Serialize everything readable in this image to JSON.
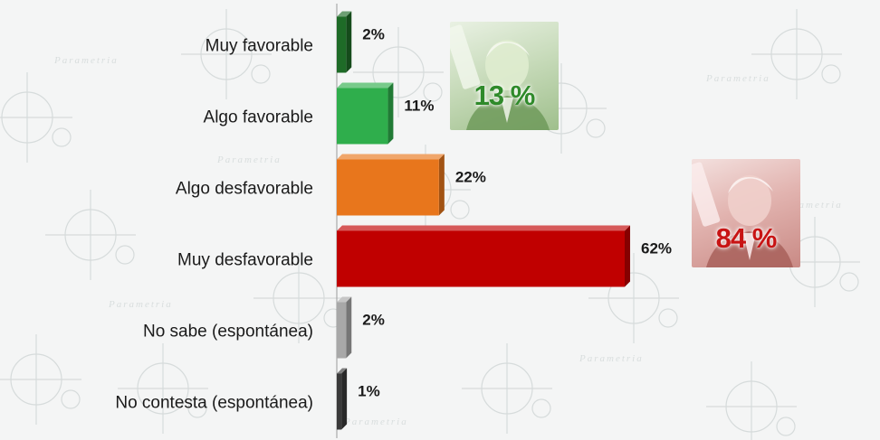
{
  "watermark_text": "Parametria",
  "chart_data": {
    "type": "bar",
    "orientation": "horizontal",
    "categories": [
      "Muy favorable",
      "Algo favorable",
      "Algo desfavorable",
      "Muy desfavorable",
      "No sabe (espontánea)",
      "No contesta (espontánea)"
    ],
    "values": [
      2,
      11,
      22,
      62,
      2,
      1
    ],
    "value_labels": [
      "2%",
      "11%",
      "22%",
      "62%",
      "2%",
      "1%"
    ],
    "colors": [
      "#1e6b27",
      "#2fae4c",
      "#e8761c",
      "#c00000",
      "#a8a8a8",
      "#3a3a3a"
    ],
    "xlim": [
      0,
      62
    ],
    "title": "",
    "xlabel": "",
    "ylabel": "",
    "grid": false,
    "legend": "none"
  },
  "callouts": {
    "favorable": {
      "value": "13 %",
      "color": "#2f8a2a",
      "icon": "portrait-photo-icon"
    },
    "unfavorable": {
      "value": "84 %",
      "color": "#c81414",
      "icon": "portrait-photo-icon"
    }
  }
}
